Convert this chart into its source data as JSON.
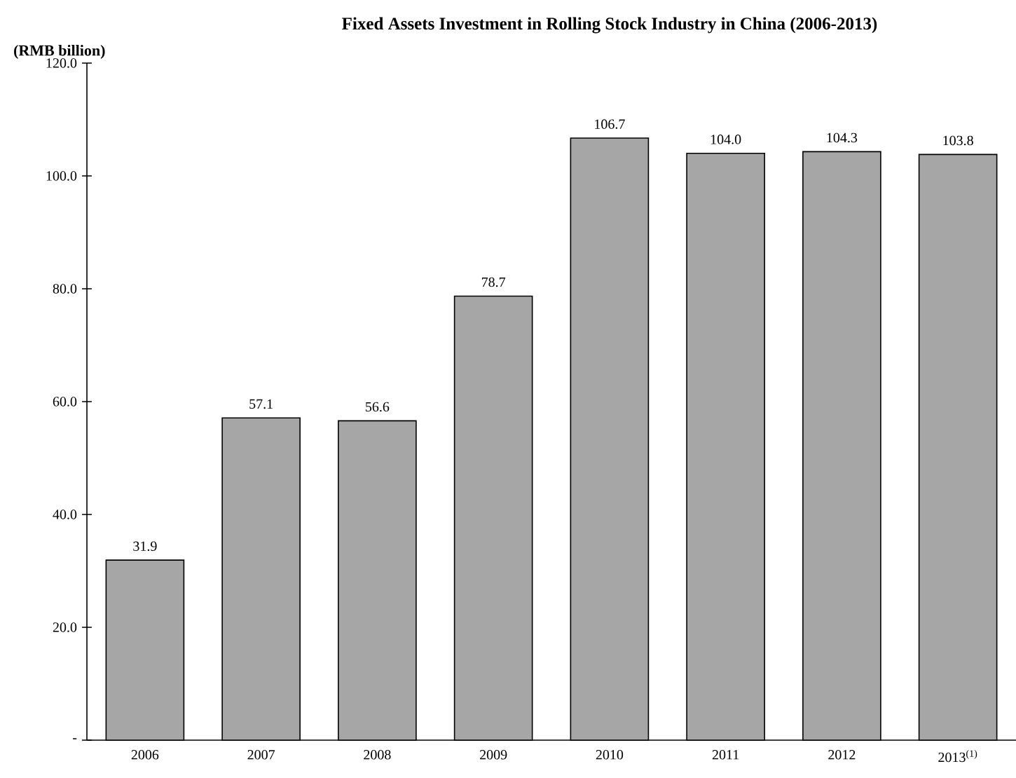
{
  "chart_data": {
    "type": "bar",
    "title": "Fixed Assets Investment in Rolling Stock Industry in China (2006-2013)",
    "ylabel": "(RMB billion)",
    "categories": [
      "2006",
      "2007",
      "2008",
      "2009",
      "2010",
      "2011",
      "2012",
      "2013$^{(1)}$"
    ],
    "values": [
      31.9,
      57.1,
      56.6,
      78.7,
      106.7,
      104.0,
      104.3,
      103.8
    ],
    "value_labels": [
      "31.9",
      "57.1",
      "56.6",
      "78.7",
      "106.7",
      "104.0",
      "104.3",
      "103.8"
    ],
    "color": "#a6a6a6",
    "ylim": [
      0,
      120
    ],
    "yticks": [
      {
        "value": 0,
        "label": "-"
      },
      {
        "value": 20,
        "label": "20.0"
      },
      {
        "value": 40,
        "label": "40.0"
      },
      {
        "value": 60,
        "label": "60.0"
      },
      {
        "value": 80,
        "label": "80.0"
      },
      {
        "value": 100,
        "label": "100.0"
      },
      {
        "value": 120,
        "label": "120.0"
      }
    ]
  }
}
